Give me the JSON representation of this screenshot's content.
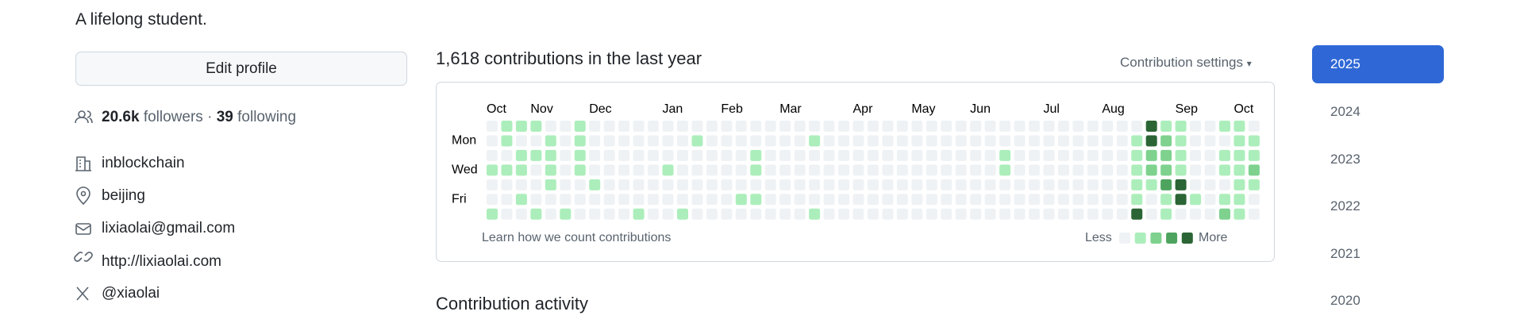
{
  "profile": {
    "bio": "A lifelong student.",
    "edit_button": "Edit profile",
    "followers": {
      "count": "20.6k",
      "label": "followers"
    },
    "separator": "·",
    "following": {
      "count": "39",
      "label": "following"
    },
    "details": [
      "inblockchain",
      "beijing",
      "lixiaolai@gmail.com",
      "http://lixiaolai.com",
      "@xiaolai"
    ]
  },
  "contributions": {
    "title": "1,618 contributions in the last year",
    "settings": "Contribution settings",
    "months": [
      "Oct",
      "Nov",
      "Dec",
      "Jan",
      "Feb",
      "Mar",
      "Apr",
      "May",
      "Jun",
      "Jul",
      "Aug",
      "Sep",
      "Oct"
    ],
    "days": [
      "Mon",
      "Wed",
      "Fri"
    ],
    "levels": [
      [
        0,
        1,
        1,
        1,
        0,
        0,
        1,
        0,
        0,
        0,
        0,
        0,
        0,
        0,
        0,
        0,
        0,
        0,
        0,
        0,
        0,
        0,
        0,
        0,
        0,
        0,
        0,
        0,
        0,
        0,
        0,
        0,
        0,
        0,
        0,
        0,
        0,
        0,
        0,
        0,
        0,
        0,
        0,
        0,
        0,
        4,
        1,
        1,
        0,
        0,
        1,
        1,
        0
      ],
      [
        0,
        1,
        0,
        0,
        1,
        0,
        1,
        0,
        0,
        0,
        0,
        0,
        0,
        0,
        1,
        0,
        0,
        0,
        0,
        0,
        0,
        0,
        1,
        0,
        0,
        0,
        0,
        0,
        0,
        0,
        0,
        0,
        0,
        0,
        0,
        0,
        0,
        0,
        0,
        0,
        0,
        0,
        0,
        0,
        1,
        4,
        2,
        1,
        0,
        0,
        0,
        1,
        1
      ],
      [
        0,
        0,
        1,
        1,
        1,
        0,
        1,
        0,
        0,
        0,
        0,
        0,
        0,
        0,
        0,
        0,
        0,
        0,
        1,
        0,
        0,
        0,
        0,
        0,
        0,
        0,
        0,
        0,
        0,
        0,
        0,
        0,
        0,
        0,
        0,
        1,
        0,
        0,
        0,
        0,
        0,
        0,
        0,
        0,
        1,
        2,
        2,
        1,
        0,
        0,
        1,
        1,
        1
      ],
      [
        1,
        1,
        1,
        0,
        1,
        0,
        1,
        0,
        0,
        0,
        0,
        0,
        1,
        0,
        0,
        0,
        0,
        0,
        1,
        0,
        0,
        0,
        0,
        0,
        0,
        0,
        0,
        0,
        0,
        0,
        0,
        0,
        0,
        0,
        0,
        1,
        0,
        0,
        0,
        0,
        0,
        0,
        0,
        0,
        1,
        2,
        2,
        1,
        0,
        0,
        1,
        1,
        2
      ],
      [
        0,
        0,
        0,
        0,
        1,
        0,
        0,
        1,
        0,
        0,
        0,
        0,
        0,
        0,
        0,
        0,
        0,
        0,
        0,
        0,
        0,
        0,
        0,
        0,
        0,
        0,
        0,
        0,
        0,
        0,
        0,
        0,
        0,
        0,
        0,
        0,
        0,
        0,
        0,
        0,
        0,
        0,
        0,
        0,
        1,
        1,
        3,
        4,
        0,
        0,
        0,
        1,
        1
      ],
      [
        0,
        0,
        1,
        0,
        0,
        0,
        0,
        0,
        0,
        0,
        0,
        0,
        0,
        0,
        0,
        0,
        0,
        1,
        1,
        0,
        0,
        0,
        0,
        0,
        0,
        0,
        0,
        0,
        0,
        0,
        0,
        0,
        0,
        0,
        0,
        0,
        0,
        0,
        0,
        0,
        0,
        0,
        0,
        0,
        1,
        0,
        1,
        4,
        1,
        0,
        1,
        1,
        0
      ],
      [
        1,
        0,
        0,
        1,
        0,
        1,
        0,
        0,
        0,
        0,
        1,
        0,
        0,
        1,
        0,
        0,
        0,
        0,
        0,
        0,
        0,
        0,
        1,
        0,
        0,
        0,
        0,
        0,
        0,
        0,
        0,
        0,
        0,
        0,
        0,
        0,
        0,
        0,
        0,
        0,
        0,
        0,
        0,
        0,
        4,
        0,
        1,
        0,
        0,
        0,
        2,
        1,
        0
      ]
    ],
    "learn_link": "Learn how we count contributions",
    "legend": {
      "less": "Less",
      "more": "More",
      "levels": [
        0,
        1,
        2,
        3,
        4
      ]
    }
  },
  "activity_title": "Contribution activity",
  "years": [
    "2025",
    "2024",
    "2023",
    "2022",
    "2021",
    "2020"
  ],
  "selected_year": 0
}
